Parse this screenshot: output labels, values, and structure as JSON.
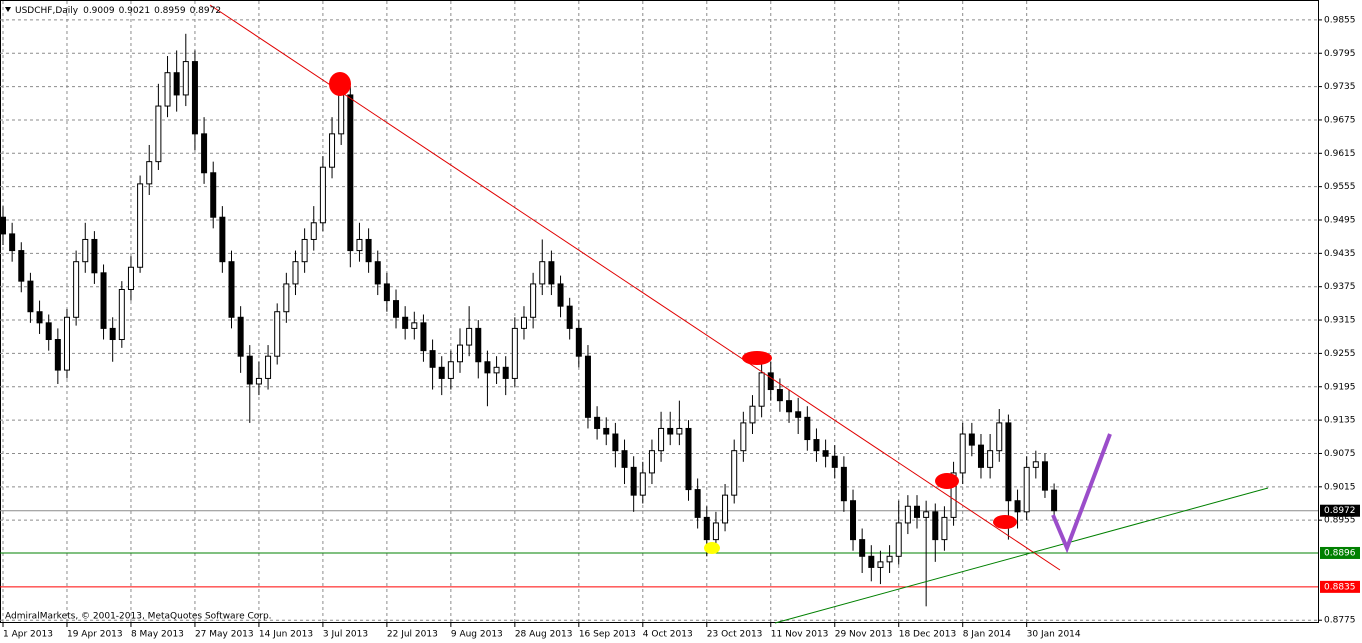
{
  "chart_data": {
    "type": "candlestick",
    "title": "USDCHF,Daily",
    "footer": "AdmiralMarkets, © 2001-2013, MetaQuotes Software Corp.",
    "categories": [
      "1 Apr 2013",
      null,
      null,
      null,
      null,
      null,
      null,
      "19 Apr 2013",
      null,
      null,
      null,
      null,
      null,
      null,
      "8 May 2013",
      null,
      null,
      null,
      null,
      null,
      null,
      "27 May 2013",
      null,
      null,
      null,
      null,
      null,
      null,
      "14 Jun 2013",
      null,
      null,
      null,
      null,
      null,
      null,
      "3 Jul 2013",
      null,
      null,
      null,
      null,
      null,
      null,
      "22 Jul 2013",
      null,
      null,
      null,
      null,
      null,
      null,
      "9 Aug 2013",
      null,
      null,
      null,
      null,
      null,
      null,
      "28 Aug 2013",
      null,
      null,
      null,
      null,
      null,
      null,
      "16 Sep 2013",
      null,
      null,
      null,
      null,
      null,
      null,
      "4 Oct 2013",
      null,
      null,
      null,
      null,
      null,
      null,
      "23 Oct 2013",
      null,
      null,
      null,
      null,
      null,
      null,
      "11 Nov 2013",
      null,
      null,
      null,
      null,
      null,
      null,
      "29 Nov 2013",
      null,
      null,
      null,
      null,
      null,
      null,
      "18 Dec 2013",
      null,
      null,
      null,
      null,
      null,
      null,
      "8 Jan 2014",
      null,
      null,
      null,
      null,
      null,
      null,
      "30 Jan 2014",
      null,
      null,
      null
    ],
    "open": [
      0.95,
      0.947,
      0.944,
      0.9385,
      0.933,
      0.931,
      0.928,
      0.9225,
      0.932,
      0.942,
      0.946,
      0.94,
      0.93,
      0.928,
      0.937,
      0.941,
      0.956,
      0.96,
      0.97,
      0.976,
      0.972,
      0.978,
      0.965,
      0.958,
      0.95,
      0.942,
      0.932,
      0.925,
      0.92,
      0.921,
      0.925,
      0.933,
      0.938,
      0.942,
      0.946,
      0.949,
      0.959,
      0.965,
      0.972,
      0.944,
      0.946,
      0.942,
      0.938,
      0.935,
      0.932,
      0.93,
      0.931,
      0.926,
      0.923,
      0.921,
      0.924,
      0.927,
      0.93,
      0.924,
      0.922,
      0.923,
      0.921,
      0.93,
      0.932,
      0.938,
      0.942,
      0.938,
      0.934,
      0.93,
      0.925,
      0.914,
      0.912,
      0.911,
      0.908,
      0.905,
      0.9,
      0.904,
      0.908,
      0.912,
      0.911,
      0.912,
      0.901,
      0.896,
      0.892,
      0.895,
      0.9,
      0.908,
      0.913,
      0.916,
      0.922,
      0.919,
      0.917,
      0.915,
      0.914,
      0.91,
      0.908,
      0.907,
      0.905,
      0.899,
      0.892,
      0.889,
      0.887,
      0.888,
      0.889,
      0.895,
      0.898,
      0.896,
      0.897,
      0.892,
      0.896,
      0.904,
      0.911,
      0.909,
      0.905,
      0.908,
      0.913,
      0.899,
      0.897,
      0.905,
      0.906,
      0.9009
    ],
    "high": [
      0.952,
      0.949,
      0.9455,
      0.94,
      0.935,
      0.9325,
      0.93,
      0.9335,
      0.944,
      0.949,
      0.9475,
      0.9415,
      0.932,
      0.9385,
      0.943,
      0.9575,
      0.963,
      0.974,
      0.979,
      0.98,
      0.983,
      0.98,
      0.968,
      0.96,
      0.952,
      0.944,
      0.934,
      0.927,
      0.924,
      0.927,
      0.9345,
      0.94,
      0.944,
      0.948,
      0.952,
      0.961,
      0.968,
      0.9745,
      0.9735,
      0.949,
      0.948,
      0.944,
      0.94,
      0.937,
      0.934,
      0.933,
      0.9325,
      0.928,
      0.925,
      0.926,
      0.93,
      0.934,
      0.9315,
      0.926,
      0.925,
      0.925,
      0.932,
      0.934,
      0.94,
      0.946,
      0.944,
      0.9395,
      0.9355,
      0.9315,
      0.927,
      0.916,
      0.914,
      0.913,
      0.91,
      0.907,
      0.906,
      0.91,
      0.915,
      0.915,
      0.917,
      0.9135,
      0.903,
      0.898,
      0.897,
      0.902,
      0.91,
      0.915,
      0.918,
      0.925,
      0.924,
      0.921,
      0.919,
      0.9175,
      0.916,
      0.912,
      0.91,
      0.909,
      0.907,
      0.901,
      0.894,
      0.891,
      0.89,
      0.891,
      0.899,
      0.9,
      0.9,
      0.899,
      0.8985,
      0.898,
      0.906,
      0.913,
      0.913,
      0.911,
      0.911,
      0.9155,
      0.9145,
      0.901,
      0.907,
      0.908,
      0.9075,
      0.9021
    ],
    "low": [
      0.945,
      0.942,
      0.9365,
      0.931,
      0.929,
      0.926,
      0.92,
      0.921,
      0.9305,
      0.94,
      0.938,
      0.928,
      0.924,
      0.9265,
      0.935,
      0.94,
      0.954,
      0.9585,
      0.968,
      0.969,
      0.97,
      0.962,
      0.956,
      0.948,
      0.94,
      0.93,
      0.922,
      0.913,
      0.918,
      0.919,
      0.9235,
      0.931,
      0.936,
      0.94,
      0.944,
      0.9475,
      0.957,
      0.963,
      0.941,
      0.942,
      0.94,
      0.936,
      0.933,
      0.93,
      0.928,
      0.928,
      0.924,
      0.919,
      0.918,
      0.919,
      0.922,
      0.925,
      0.921,
      0.916,
      0.92,
      0.918,
      0.9195,
      0.928,
      0.93,
      0.936,
      0.936,
      0.932,
      0.928,
      0.923,
      0.912,
      0.91,
      0.909,
      0.905,
      0.902,
      0.897,
      0.8985,
      0.902,
      0.906,
      0.909,
      0.909,
      0.899,
      0.894,
      0.889,
      0.89,
      0.8935,
      0.8985,
      0.906,
      0.911,
      0.914,
      0.917,
      0.915,
      0.913,
      0.911,
      0.908,
      0.906,
      0.905,
      0.903,
      0.897,
      0.89,
      0.886,
      0.8845,
      0.884,
      0.886,
      0.8875,
      0.893,
      0.894,
      0.88,
      0.888,
      0.89,
      0.8945,
      0.902,
      0.907,
      0.903,
      0.903,
      0.906,
      0.892,
      0.894,
      0.8955,
      0.903,
      0.8995,
      0.8959
    ],
    "close": [
      0.947,
      0.944,
      0.9385,
      0.933,
      0.931,
      0.928,
      0.9225,
      0.932,
      0.942,
      0.946,
      0.94,
      0.93,
      0.928,
      0.937,
      0.941,
      0.956,
      0.96,
      0.97,
      0.976,
      0.972,
      0.978,
      0.965,
      0.958,
      0.95,
      0.942,
      0.932,
      0.925,
      0.92,
      0.921,
      0.925,
      0.933,
      0.938,
      0.942,
      0.946,
      0.949,
      0.959,
      0.965,
      0.972,
      0.944,
      0.946,
      0.942,
      0.938,
      0.935,
      0.932,
      0.93,
      0.931,
      0.926,
      0.923,
      0.921,
      0.924,
      0.927,
      0.93,
      0.924,
      0.922,
      0.923,
      0.921,
      0.93,
      0.932,
      0.938,
      0.942,
      0.938,
      0.934,
      0.93,
      0.925,
      0.914,
      0.912,
      0.911,
      0.908,
      0.905,
      0.9,
      0.904,
      0.908,
      0.912,
      0.911,
      0.912,
      0.901,
      0.896,
      0.892,
      0.895,
      0.9,
      0.908,
      0.913,
      0.916,
      0.922,
      0.919,
      0.917,
      0.915,
      0.914,
      0.91,
      0.908,
      0.907,
      0.905,
      0.899,
      0.892,
      0.889,
      0.887,
      0.888,
      0.889,
      0.895,
      0.898,
      0.896,
      0.897,
      0.892,
      0.896,
      0.904,
      0.911,
      0.909,
      0.905,
      0.908,
      0.913,
      0.899,
      0.897,
      0.905,
      0.906,
      0.9009,
      0.8972
    ],
    "ylim": [
      0.877,
      0.9889
    ],
    "yticks": [
      0.9855,
      0.9795,
      0.9735,
      0.9675,
      0.9615,
      0.9555,
      0.9495,
      0.9435,
      0.9375,
      0.9315,
      0.9255,
      0.9195,
      0.9135,
      0.9075,
      0.9015,
      0.8955,
      0.8775
    ],
    "grid": true,
    "hlines": [
      {
        "value": 0.8972,
        "color": "#000000"
      },
      {
        "value": 0.8896,
        "color": "#008000"
      },
      {
        "value": 0.8835,
        "color": "#ff0000"
      }
    ]
  }
}
